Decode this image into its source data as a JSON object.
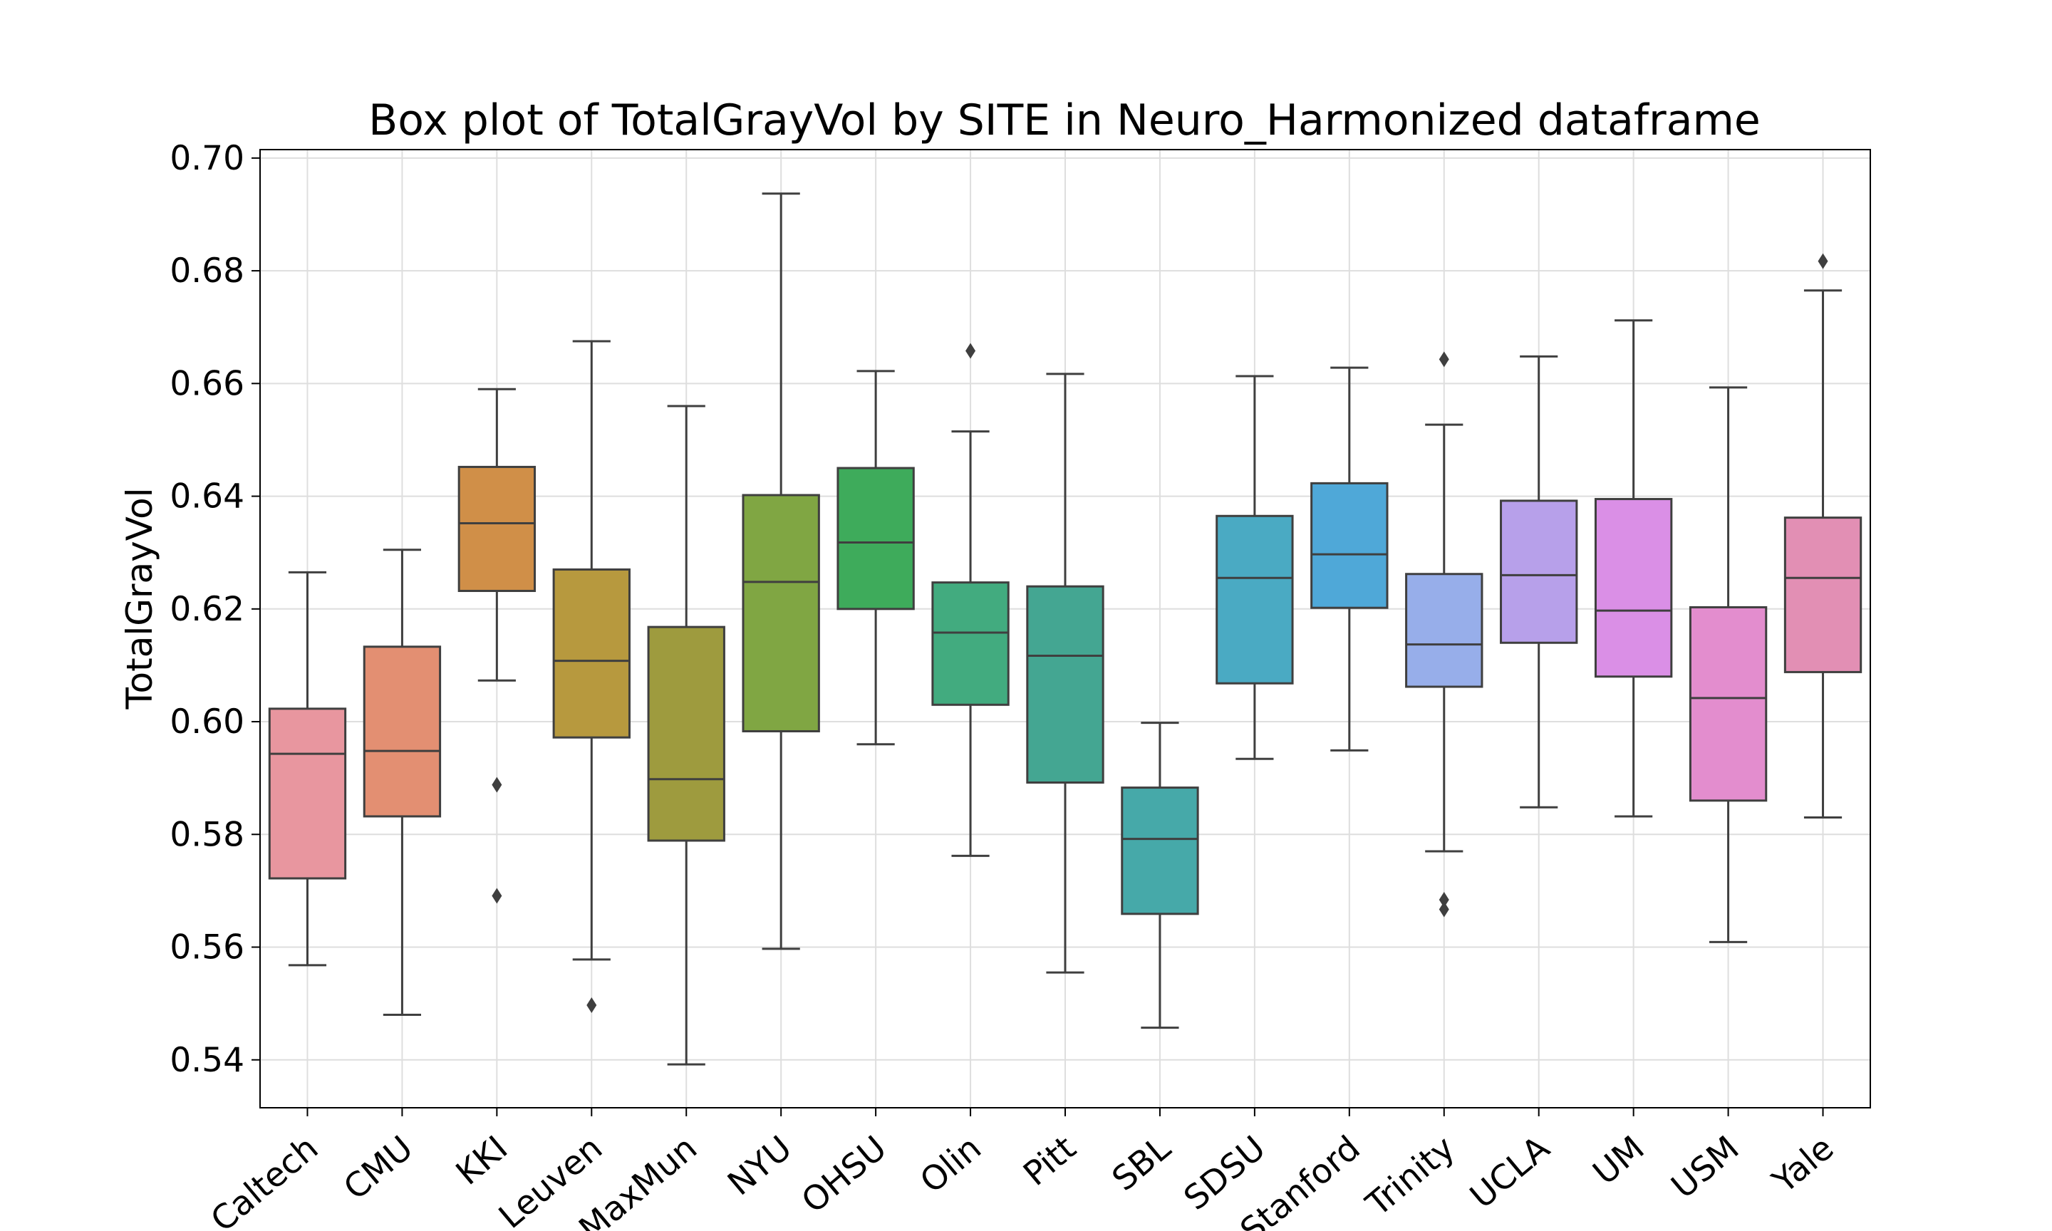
{
  "chart_data": {
    "type": "box",
    "title": "Box plot of TotalGrayVol by SITE in Neuro_Harmonized dataframe",
    "xlabel": "",
    "ylabel": "TotalGrayVol",
    "ylim": [
      0.5315,
      0.7015
    ],
    "yticks": [
      "0.54",
      "0.56",
      "0.58",
      "0.60",
      "0.62",
      "0.64",
      "0.66",
      "0.68",
      "0.70"
    ],
    "grid": true,
    "series": [
      {
        "site": "Caltech",
        "color": "#e8969f",
        "min": 0.5568,
        "q1": 0.5722,
        "median": 0.5943,
        "q3": 0.6023,
        "max": 0.6265,
        "outliers": []
      },
      {
        "site": "CMU",
        "color": "#e38f72",
        "min": 0.548,
        "q1": 0.5832,
        "median": 0.5948,
        "q3": 0.6133,
        "max": 0.6305,
        "outliers": []
      },
      {
        "site": "KKI",
        "color": "#d08f48",
        "min": 0.6073,
        "q1": 0.6232,
        "median": 0.6352,
        "q3": 0.6452,
        "max": 0.659,
        "outliers": [
          0.5888,
          0.5691
        ]
      },
      {
        "site": "Leuven",
        "color": "#b7993e",
        "min": 0.5578,
        "q1": 0.5972,
        "median": 0.6108,
        "q3": 0.627,
        "max": 0.6675,
        "outliers": [
          0.5497
        ]
      },
      {
        "site": "MaxMun",
        "color": "#9e9b3e",
        "min": 0.5392,
        "q1": 0.5789,
        "median": 0.5898,
        "q3": 0.6168,
        "max": 0.656,
        "outliers": []
      },
      {
        "site": "NYU",
        "color": "#80a643",
        "min": 0.5597,
        "q1": 0.5983,
        "median": 0.6248,
        "q3": 0.6402,
        "max": 0.6937,
        "outliers": []
      },
      {
        "site": "OHSU",
        "color": "#3eab5b",
        "min": 0.596,
        "q1": 0.62,
        "median": 0.6318,
        "q3": 0.645,
        "max": 0.6622,
        "outliers": []
      },
      {
        "site": "Olin",
        "color": "#42ab7f",
        "min": 0.5762,
        "q1": 0.603,
        "median": 0.6158,
        "q3": 0.6247,
        "max": 0.6515,
        "outliers": [
          0.6658
        ]
      },
      {
        "site": "Pitt",
        "color": "#44a692",
        "min": 0.5555,
        "q1": 0.5892,
        "median": 0.6117,
        "q3": 0.624,
        "max": 0.6617,
        "outliers": []
      },
      {
        "site": "SBL",
        "color": "#46a9a9",
        "min": 0.5457,
        "q1": 0.5659,
        "median": 0.5792,
        "q3": 0.5883,
        "max": 0.5998,
        "outliers": []
      },
      {
        "site": "SDSU",
        "color": "#4aaac3",
        "min": 0.5934,
        "q1": 0.6068,
        "median": 0.6255,
        "q3": 0.6365,
        "max": 0.6613,
        "outliers": []
      },
      {
        "site": "Stanford",
        "color": "#4fa8d8",
        "min": 0.5949,
        "q1": 0.6202,
        "median": 0.6297,
        "q3": 0.6423,
        "max": 0.6628,
        "outliers": []
      },
      {
        "site": "Trinity",
        "color": "#97aeea",
        "min": 0.577,
        "q1": 0.6062,
        "median": 0.6137,
        "q3": 0.6262,
        "max": 0.6527,
        "outliers": [
          0.6643,
          0.5684,
          0.5667
        ]
      },
      {
        "site": "UCLA",
        "color": "#b7a0ea",
        "min": 0.5848,
        "q1": 0.614,
        "median": 0.626,
        "q3": 0.6392,
        "max": 0.6648,
        "outliers": []
      },
      {
        "site": "UM",
        "color": "#da8fe6",
        "min": 0.5832,
        "q1": 0.608,
        "median": 0.6197,
        "q3": 0.6395,
        "max": 0.6712,
        "outliers": []
      },
      {
        "site": "USM",
        "color": "#e38dce",
        "min": 0.5609,
        "q1": 0.586,
        "median": 0.6042,
        "q3": 0.6203,
        "max": 0.6593,
        "outliers": []
      },
      {
        "site": "Yale",
        "color": "#e28fb4",
        "min": 0.583,
        "q1": 0.6088,
        "median": 0.6255,
        "q3": 0.6362,
        "max": 0.6765,
        "outliers": [
          0.6817
        ]
      }
    ]
  }
}
